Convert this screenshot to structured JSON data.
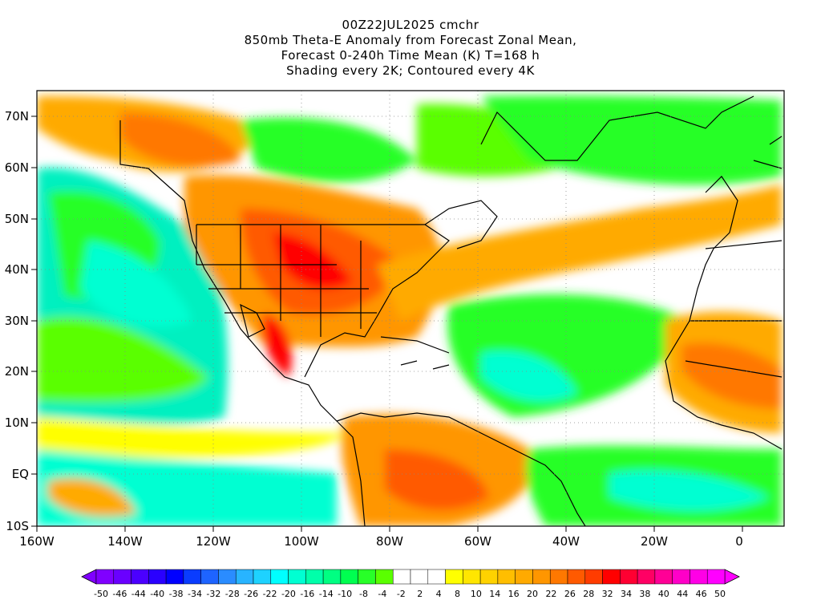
{
  "title": {
    "lines": [
      "00Z22JUL2025 cmchr",
      "850mb Theta-E Anomaly from Forecast Zonal Mean,",
      "Forecast 0-240h Time Mean (K) T=168 h",
      "Shading every 2K; Contoured every 4K"
    ]
  },
  "axes": {
    "x_ticks": [
      "160W",
      "140W",
      "120W",
      "100W",
      "80W",
      "60W",
      "40W",
      "20W",
      "0"
    ],
    "y_ticks": [
      "70N",
      "60N",
      "50N",
      "40N",
      "30N",
      "20N",
      "10N",
      "EQ",
      "10S"
    ]
  },
  "colorbar": {
    "colors": [
      "#8000ff",
      "#6a00ff",
      "#4b00ff",
      "#2a00ff",
      "#0000ff",
      "#0a3cff",
      "#1e64ff",
      "#2a8cff",
      "#28b4ff",
      "#1ed2ff",
      "#00ffff",
      "#00ffd2",
      "#00ffaa",
      "#00ff82",
      "#00ff50",
      "#28ff28",
      "#5aff00",
      "#ffffff",
      "#ffffff",
      "#ffffff",
      "#ffff00",
      "#ffe600",
      "#ffd200",
      "#ffbe00",
      "#ffaa00",
      "#ff9600",
      "#ff7800",
      "#ff5a00",
      "#ff3c00",
      "#ff0000",
      "#ff0032",
      "#ff0064",
      "#ff0096",
      "#ff00c8",
      "#ff00e6",
      "#ff00ff"
    ],
    "labels": [
      "-50",
      "-46",
      "-44",
      "-40",
      "-38",
      "-34",
      "-32",
      "-28",
      "-26",
      "-22",
      "-20",
      "-16",
      "-14",
      "-10",
      "-8",
      "-4",
      "-2",
      "2",
      "4",
      "8",
      "10",
      "14",
      "16",
      "20",
      "22",
      "26",
      "28",
      "32",
      "34",
      "38",
      "40",
      "44",
      "46",
      "50"
    ]
  }
}
